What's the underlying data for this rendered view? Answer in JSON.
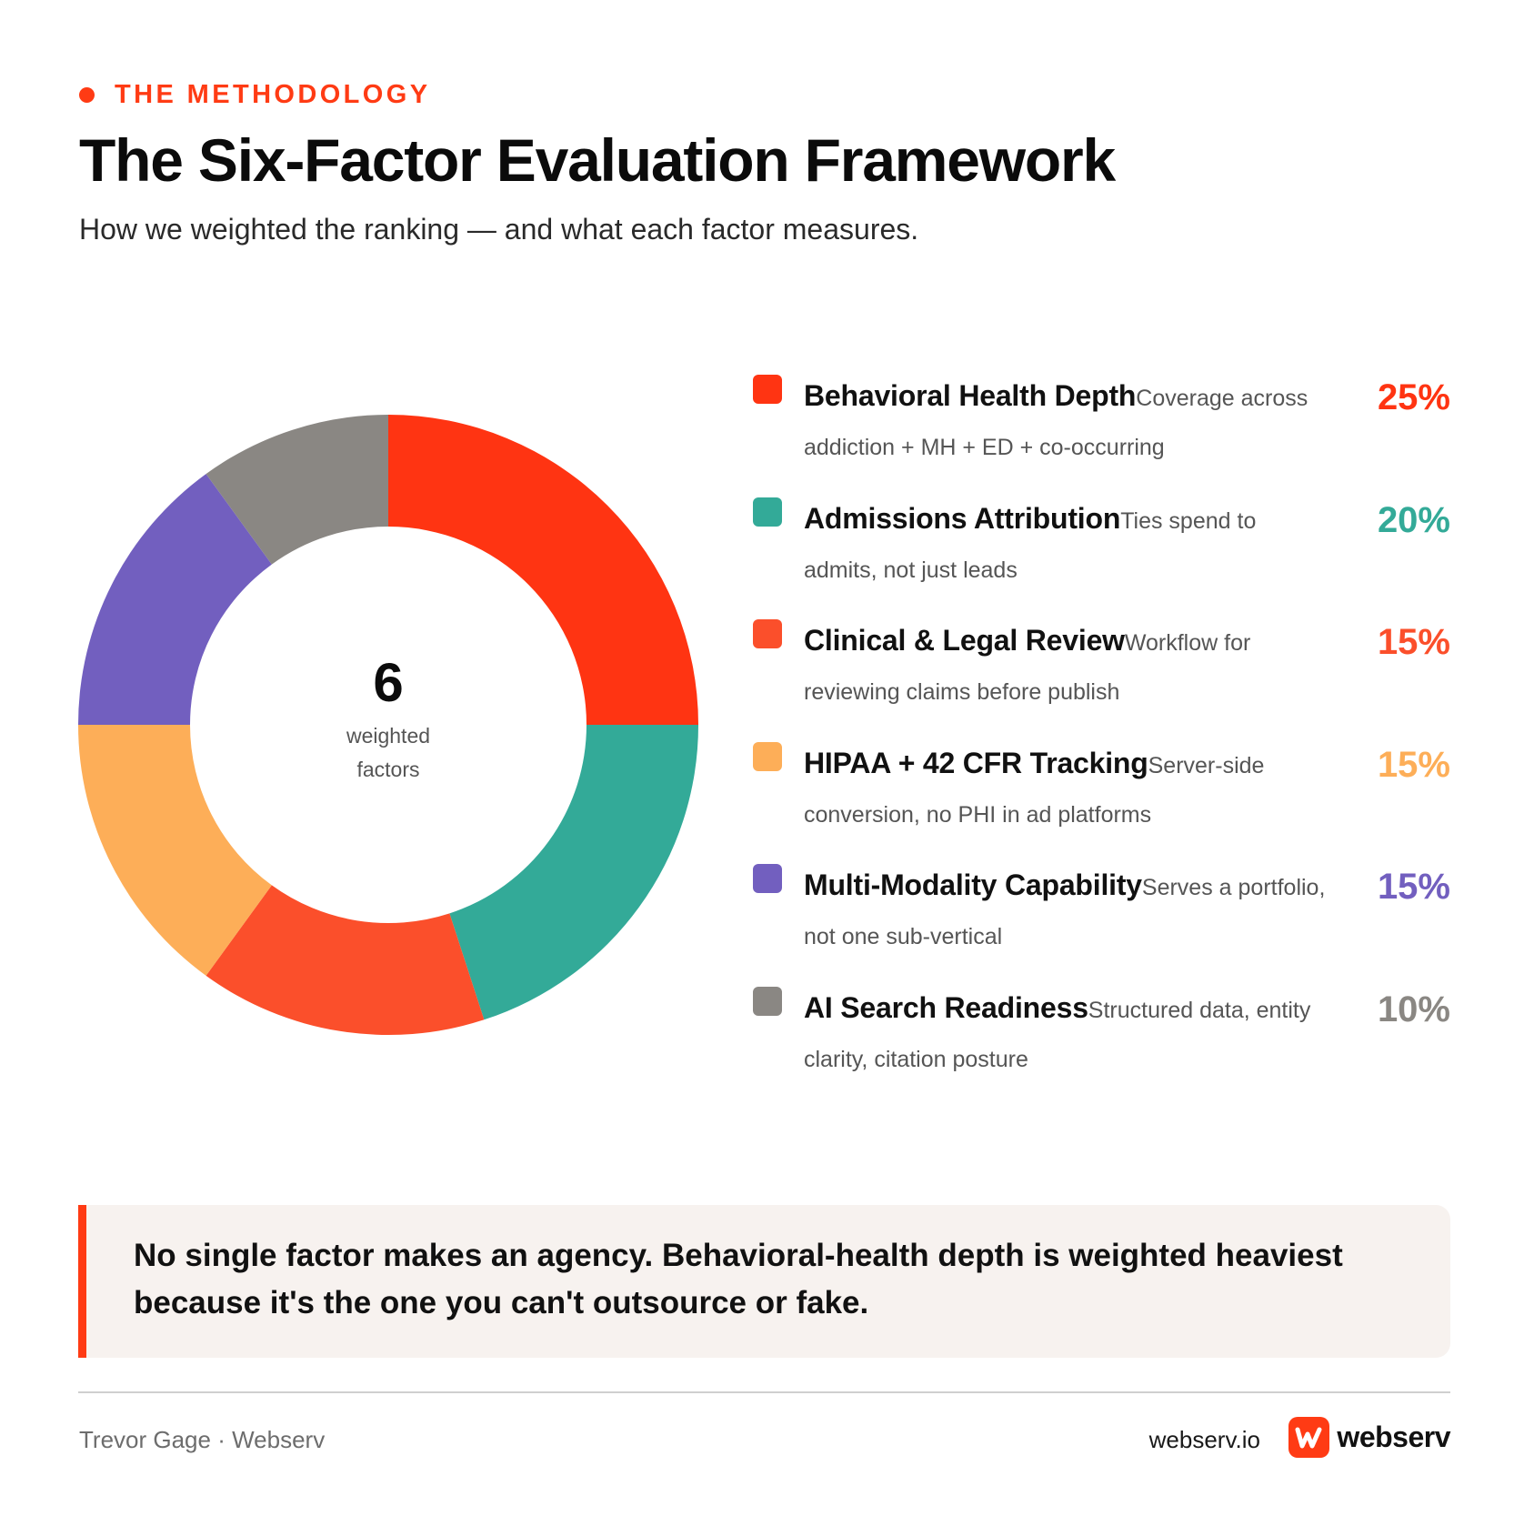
{
  "header": {
    "eyebrow": "THE METHODOLOGY",
    "title": "The Six-Factor Evaluation Framework",
    "subtitle": "How we weighted the ranking — and what each factor measures."
  },
  "chart_data": {
    "type": "pie",
    "variant": "donut",
    "center": {
      "number": "6",
      "label_line1": "weighted",
      "label_line2": "factors"
    },
    "slices": [
      {
        "name": "Behavioral Health Depth",
        "description": "Coverage across addiction + MH + ED + co-occurring",
        "value": 25,
        "label": "25%",
        "color": "#ff3412"
      },
      {
        "name": "Admissions Attribution",
        "description": "Ties spend to admits, not just leads",
        "value": 20,
        "label": "20%",
        "color": "#33aa98"
      },
      {
        "name": "Clinical & Legal Review",
        "description": "Workflow for reviewing claims before publish",
        "value": 15,
        "label": "15%",
        "color": "#fb4f2b"
      },
      {
        "name": "HIPAA + 42 CFR Tracking",
        "description": "Server-side conversion, no PHI in ad platforms",
        "value": 15,
        "label": "15%",
        "color": "#fdae58"
      },
      {
        "name": "Multi-Modality Capability",
        "description": "Serves a portfolio, not one sub-vertical",
        "value": 15,
        "label": "15%",
        "color": "#725fbf"
      },
      {
        "name": "AI Search Readiness",
        "description": "Structured data, entity clarity, citation posture",
        "value": 10,
        "label": "10%",
        "color": "#8a8783"
      }
    ]
  },
  "callout": {
    "text": "No single factor makes an agency. Behavioral-health depth is weighted heaviest because it's the one you can't outsource or fake."
  },
  "footer": {
    "byline": "Trevor Gage · Webserv",
    "url": "webserv.io",
    "brand_name": "webserv",
    "brand_color": "#ff3b14"
  }
}
